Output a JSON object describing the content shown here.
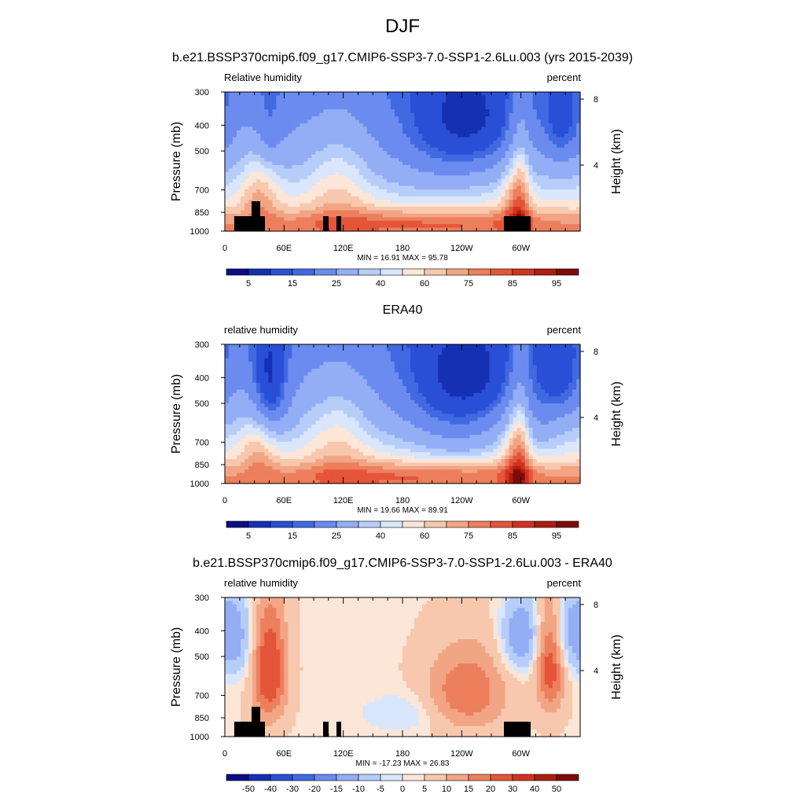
{
  "main_title": "DJF",
  "colors": {
    "rh_levels": [
      "#0b0e82",
      "#1630b4",
      "#2a4fd7",
      "#4169e1",
      "#6b8bef",
      "#93aef5",
      "#b7cdf9",
      "#d9e6fb",
      "#fbe6d8",
      "#f7c8ae",
      "#f2a585",
      "#ec7f5d",
      "#e4553a",
      "#d2321f",
      "#ad1d12",
      "#7d0c0a"
    ],
    "diff_levels": [
      "#0b0e82",
      "#1630b4",
      "#2a4fd7",
      "#4169e1",
      "#6b8bef",
      "#93aef5",
      "#b7cdf9",
      "#d9e6fb",
      "#fbe6d8",
      "#f7c8ae",
      "#f2a585",
      "#ec7f5d",
      "#e4553a",
      "#d2321f",
      "#ad1d12",
      "#7d0c0a"
    ],
    "topography": "#000000"
  },
  "chart_data": [
    {
      "type": "heatmap",
      "title": "b.e21.BSSP370cmip6.f09_g17.CMIP6-SSP3-7.0-SSP1-2.6Lu.003 (yrs 2015-2039)",
      "left_label": "Relative humidity",
      "right_label": "percent",
      "ylabel": "Pressure (mb)",
      "ylabel_right": "Height (km)",
      "x_ticks": [
        "0",
        "60E",
        "120E",
        "180",
        "120W",
        "60W"
      ],
      "y_ticks": [
        "300",
        "400",
        "500",
        "700",
        "850",
        "1000"
      ],
      "y_ticks_right": [
        "8",
        "4"
      ],
      "stats": "MIN =  16.91  MAX =  95.78",
      "colorbar_labels": [
        "5",
        "15",
        "25",
        "40",
        "60",
        "75",
        "85",
        "95"
      ],
      "field": "rh"
    },
    {
      "type": "heatmap",
      "title": "ERA40",
      "left_label": "relative humidity",
      "right_label": "percent",
      "ylabel": "Pressure (mb)",
      "ylabel_right": "Height (km)",
      "x_ticks": [
        "0",
        "60E",
        "120E",
        "180",
        "120W",
        "60W"
      ],
      "y_ticks": [
        "300",
        "400",
        "500",
        "700",
        "850",
        "1000"
      ],
      "y_ticks_right": [
        "8",
        "4"
      ],
      "stats": "MIN =  19.66  MAX =  89.91",
      "colorbar_labels": [
        "5",
        "15",
        "25",
        "40",
        "60",
        "75",
        "85",
        "95"
      ],
      "field": "rh"
    },
    {
      "type": "heatmap",
      "title": "b.e21.BSSP370cmip6.f09_g17.CMIP6-SSP3-7.0-SSP1-2.6Lu.003 - ERA40",
      "left_label": "relative humidity",
      "right_label": "percent",
      "ylabel": "Pressure (mb)",
      "ylabel_right": "Height (km)",
      "x_ticks": [
        "0",
        "60E",
        "120E",
        "180",
        "120W",
        "60W"
      ],
      "y_ticks": [
        "300",
        "400",
        "500",
        "700",
        "850",
        "1000"
      ],
      "y_ticks_right": [
        "8",
        "4"
      ],
      "stats": "MIN = -17.23  MAX =  26.83",
      "colorbar_labels": [
        "-50",
        "-40",
        "-30",
        "-20",
        "-15",
        "-10",
        "-5",
        "0",
        "5",
        "10",
        "15",
        "20",
        "30",
        "40",
        "50"
      ],
      "field": "diff"
    }
  ]
}
